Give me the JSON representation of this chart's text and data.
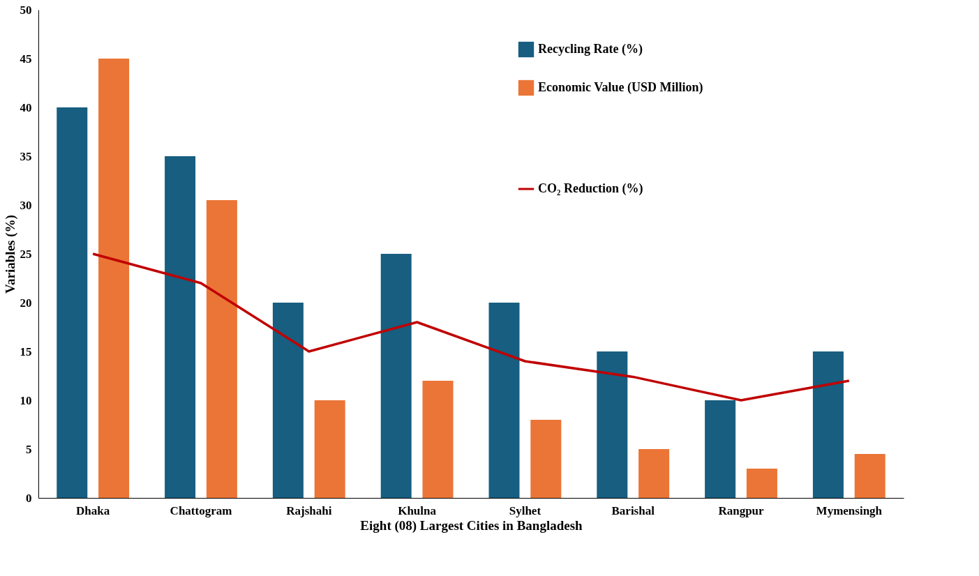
{
  "chart_data": {
    "type": "bar",
    "xlabel": "Eight (08) Largest Cities in Bangladesh",
    "ylabel": "Variables (%)",
    "categories": [
      "Dhaka",
      "Chattogram",
      "Rajshahi",
      "Khulna",
      "Sylhet",
      "Barishal",
      "Rangpur",
      "Mymensingh"
    ],
    "series": [
      {
        "name": "Recycling Rate (%)",
        "color": "#175e80",
        "values": [
          40,
          35,
          20,
          25,
          20,
          15,
          10,
          15
        ]
      },
      {
        "name": "Economic Value (USD Million)",
        "color": "#eb7536",
        "values": [
          45,
          30.5,
          10,
          12,
          8,
          5,
          3,
          4.5
        ]
      },
      {
        "name": "CO₂ Reduction (%)",
        "color": "#c00000",
        "type": "line",
        "values": [
          25,
          22,
          15,
          18,
          14,
          12.4,
          10,
          12
        ]
      }
    ],
    "ylim": [
      0,
      50
    ],
    "yticks": [
      0,
      5,
      10,
      15,
      20,
      25,
      30,
      35,
      40,
      45,
      50
    ],
    "grid": false,
    "legend": "top right",
    "marker": "none",
    "line_style": "solid"
  }
}
